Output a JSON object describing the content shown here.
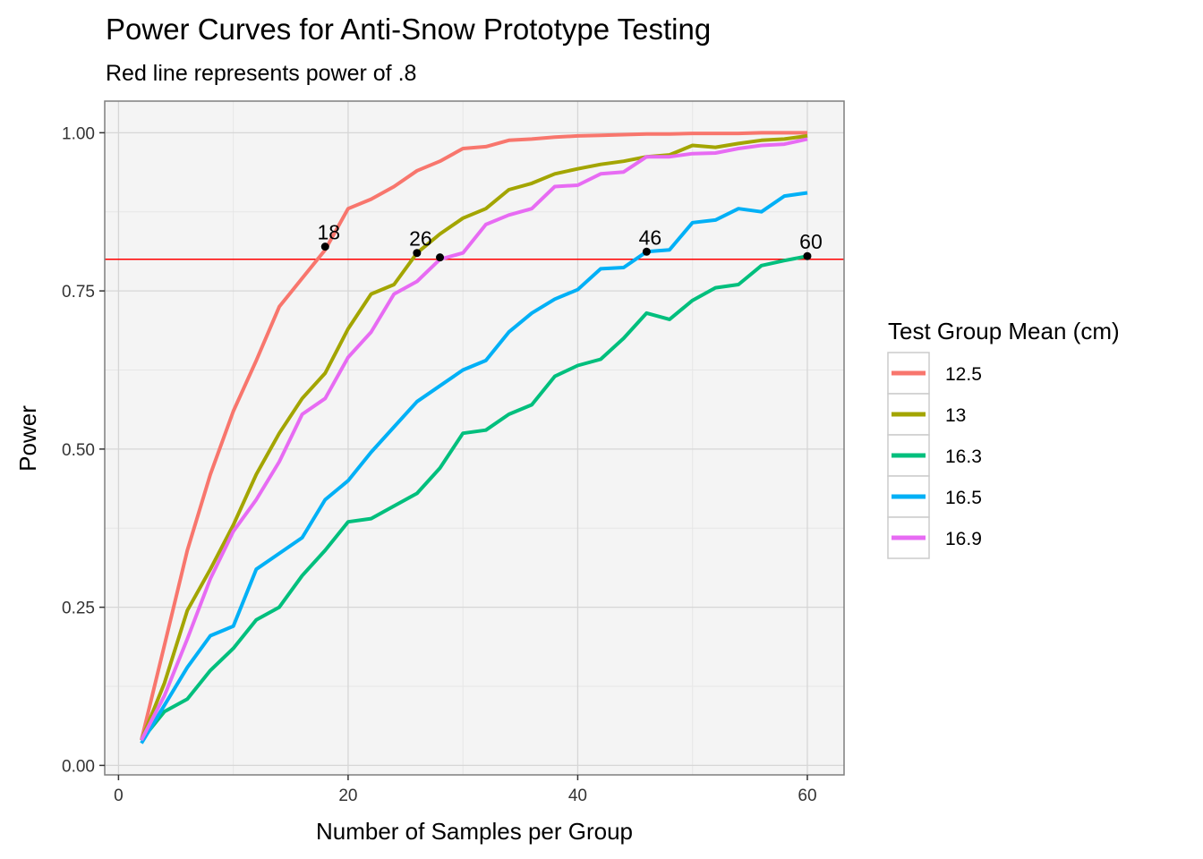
{
  "chart_data": {
    "type": "line",
    "title": "Power Curves for Anti-Snow Prototype Testing",
    "subtitle": "Red line represents power of .8",
    "xlabel": "Number of Samples per Group",
    "ylabel": "Power",
    "xlim": [
      -1.2,
      63.2
    ],
    "ylim": [
      -0.015,
      1.05
    ],
    "xticks": [
      0,
      20,
      40,
      60
    ],
    "xtick_labels": [
      "0",
      "20",
      "40",
      "60"
    ],
    "yticks": [
      0,
      0.25,
      0.5,
      0.75,
      1.0
    ],
    "ytick_labels": [
      "0.00",
      "0.25",
      "0.50",
      "0.75",
      "1.00"
    ],
    "grid": true,
    "reference_line": {
      "y": 0.8,
      "color": "#FF0000",
      "label": "power of .8"
    },
    "x": [
      2,
      4,
      6,
      8,
      10,
      12,
      14,
      16,
      18,
      20,
      22,
      24,
      26,
      28,
      30,
      32,
      34,
      36,
      38,
      40,
      42,
      44,
      46,
      48,
      50,
      52,
      54,
      56,
      58,
      60
    ],
    "series": [
      {
        "name": "12.5",
        "color": "#F8766D",
        "values": [
          0.04,
          0.19,
          0.34,
          0.46,
          0.56,
          0.64,
          0.725,
          0.77,
          0.815,
          0.88,
          0.895,
          0.915,
          0.94,
          0.955,
          0.975,
          0.978,
          0.988,
          0.99,
          0.993,
          0.995,
          0.996,
          0.997,
          0.998,
          0.998,
          0.999,
          0.999,
          0.999,
          1.0,
          1.0,
          1.0
        ]
      },
      {
        "name": "13",
        "color": "#A3A500",
        "values": [
          0.04,
          0.13,
          0.245,
          0.31,
          0.38,
          0.46,
          0.525,
          0.58,
          0.62,
          0.69,
          0.745,
          0.76,
          0.81,
          0.84,
          0.865,
          0.88,
          0.91,
          0.92,
          0.935,
          0.943,
          0.95,
          0.955,
          0.962,
          0.965,
          0.98,
          0.977,
          0.983,
          0.988,
          0.99,
          0.995
        ]
      },
      {
        "name": "16.3",
        "color": "#00BF7D",
        "values": [
          0.04,
          0.085,
          0.105,
          0.15,
          0.185,
          0.23,
          0.25,
          0.3,
          0.34,
          0.385,
          0.39,
          0.41,
          0.43,
          0.47,
          0.525,
          0.53,
          0.555,
          0.57,
          0.615,
          0.632,
          0.642,
          0.675,
          0.715,
          0.705,
          0.735,
          0.755,
          0.76,
          0.79,
          0.798,
          0.805
        ]
      },
      {
        "name": "16.5",
        "color": "#00B0F6",
        "values": [
          0.035,
          0.095,
          0.155,
          0.205,
          0.22,
          0.31,
          0.335,
          0.36,
          0.42,
          0.45,
          0.495,
          0.535,
          0.575,
          0.6,
          0.625,
          0.64,
          0.685,
          0.715,
          0.737,
          0.752,
          0.785,
          0.787,
          0.812,
          0.815,
          0.858,
          0.862,
          0.88,
          0.875,
          0.9,
          0.905
        ]
      },
      {
        "name": "16.9",
        "color": "#E76BF3",
        "values": [
          0.04,
          0.11,
          0.2,
          0.295,
          0.37,
          0.42,
          0.48,
          0.555,
          0.58,
          0.645,
          0.685,
          0.745,
          0.765,
          0.8,
          0.81,
          0.855,
          0.87,
          0.88,
          0.915,
          0.917,
          0.935,
          0.938,
          0.962,
          0.962,
          0.967,
          0.968,
          0.975,
          0.98,
          0.982,
          0.99
        ]
      }
    ],
    "annotations": [
      {
        "x": 18,
        "y": 0.82,
        "label": "18",
        "show_label": true
      },
      {
        "x": 26,
        "y": 0.81,
        "label": "26",
        "show_label": true
      },
      {
        "x": 28,
        "y": 0.803,
        "label": "28",
        "show_label": false
      },
      {
        "x": 46,
        "y": 0.812,
        "label": "46",
        "show_label": true
      },
      {
        "x": 60,
        "y": 0.805,
        "label": "60",
        "show_label": true
      }
    ],
    "legend": {
      "title": "Test Group Mean (cm)",
      "position": "right",
      "entries": [
        "12.5",
        "13",
        "16.3",
        "16.5",
        "16.9"
      ]
    }
  }
}
